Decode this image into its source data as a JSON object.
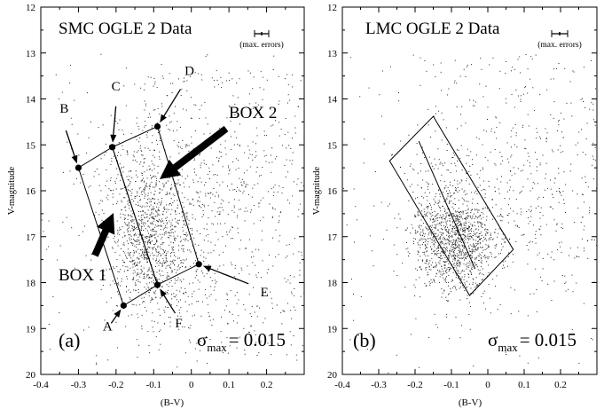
{
  "chart_data": [
    {
      "type": "scatter",
      "panel_label": "(a)",
      "title": "SMC OGLE 2 Data",
      "xlabel": "(B-V)",
      "ylabel": "V-magnitude",
      "xlim": [
        -0.4,
        0.3
      ],
      "ylim": [
        20,
        12
      ],
      "y_inverted": true,
      "grid": false,
      "x_ticks": [
        "-0.4",
        "-0.3",
        "-0.2",
        "-0.1",
        "0",
        "0.1",
        "0.2"
      ],
      "y_ticks": [
        "12",
        "13",
        "14",
        "15",
        "16",
        "17",
        "18",
        "19",
        "20"
      ],
      "errorbar_label": "(max. errors)",
      "sigma": {
        "symbol": "σ",
        "subscript": "max",
        "value": "= 0.015"
      },
      "points": [
        {
          "label": "A",
          "x": -0.18,
          "y": 18.5
        },
        {
          "label": "B",
          "x": -0.3,
          "y": 15.5
        },
        {
          "label": "C",
          "x": -0.21,
          "y": 15.05
        },
        {
          "label": "D",
          "x": -0.09,
          "y": 14.6
        },
        {
          "label": "E",
          "x": 0.02,
          "y": 17.6
        },
        {
          "label": "F",
          "x": -0.09,
          "y": 18.05
        }
      ],
      "boxes": [
        {
          "label": "BOX 1",
          "corners": [
            "A",
            "B",
            "C",
            "F"
          ]
        },
        {
          "label": "BOX 2",
          "corners": [
            "C",
            "D",
            "E",
            "F"
          ]
        }
      ]
    },
    {
      "type": "scatter",
      "panel_label": "(b)",
      "title": "LMC OGLE 2 Data",
      "xlabel": "(B-V)",
      "ylabel": "V-magnitude",
      "xlim": [
        -0.4,
        0.3
      ],
      "ylim": [
        20,
        12
      ],
      "y_inverted": true,
      "grid": false,
      "x_ticks": [
        "-0.4",
        "-0.3",
        "-0.2",
        "-0.1",
        "0",
        "0.1",
        "0.2"
      ],
      "y_ticks": [
        "12",
        "13",
        "14",
        "15",
        "16",
        "17",
        "18",
        "19",
        "20"
      ],
      "errorbar_label": "(max. errors)",
      "sigma": {
        "symbol": "σ",
        "subscript": "max",
        "value": "= 0.015"
      },
      "box_corners": [
        {
          "x": -0.27,
          "y": 15.35
        },
        {
          "x": -0.15,
          "y": 14.38
        },
        {
          "x": 0.07,
          "y": 17.28
        },
        {
          "x": -0.05,
          "y": 18.28
        }
      ],
      "box_divider": [
        {
          "x": -0.19,
          "y": 14.92
        },
        {
          "x": -0.035,
          "y": 17.7
        }
      ]
    }
  ]
}
